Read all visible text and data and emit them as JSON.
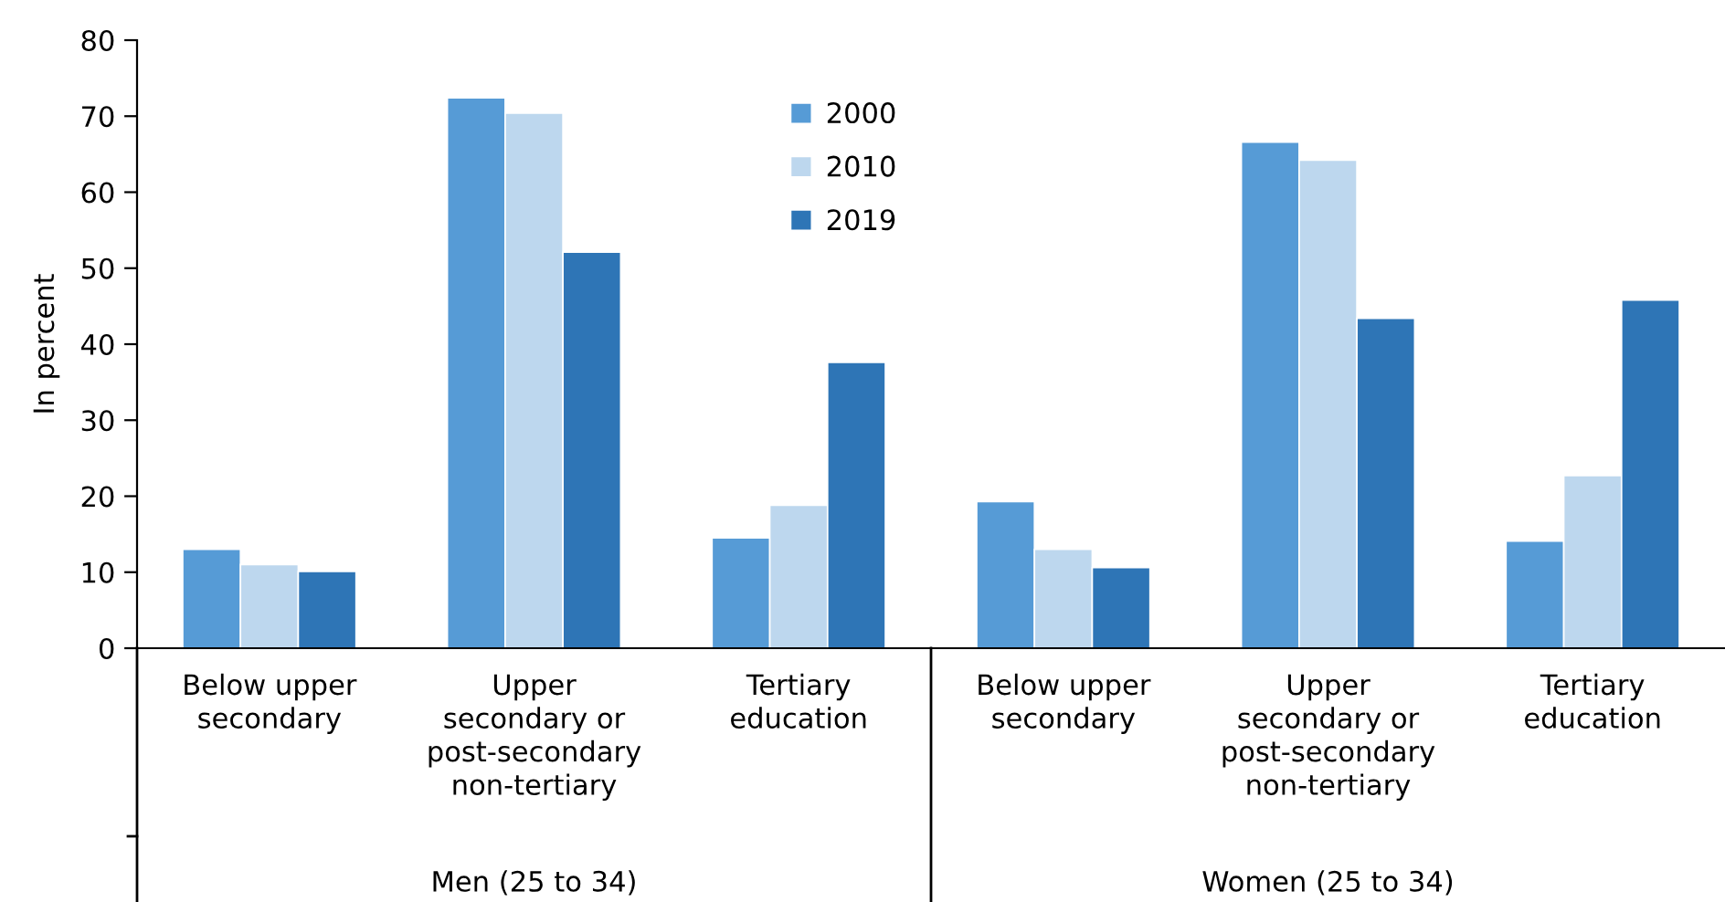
{
  "chart_data": {
    "type": "bar",
    "ylabel": "In percent",
    "categories": [
      "Below upper\nsecondary",
      "Upper\nsecondary or\npost-secondary\nnon-tertiary",
      "Tertiary\neducation",
      "Below upper\nsecondary",
      "Upper\nsecondary or\npost-secondary\nnon-tertiary",
      "Tertiary\neducation"
    ],
    "series": [
      {
        "name": "2000",
        "color": "#569bd6",
        "values": [
          13.0,
          72.4,
          14.5,
          19.3,
          66.6,
          14.1
        ]
      },
      {
        "name": "2010",
        "color": "#bdd7ee",
        "values": [
          11.0,
          70.4,
          18.8,
          13.0,
          64.2,
          22.7
        ]
      },
      {
        "name": "2019",
        "color": "#2e75b6",
        "values": [
          10.1,
          52.1,
          37.6,
          10.6,
          43.4,
          45.8
        ]
      }
    ],
    "ylim": [
      0,
      80
    ],
    "yticks": [
      0,
      10,
      20,
      30,
      40,
      50,
      60,
      70,
      80
    ],
    "legend": "top",
    "annotations": [
      "Men (25 to 34)",
      "Women (25 to 34)"
    ]
  }
}
